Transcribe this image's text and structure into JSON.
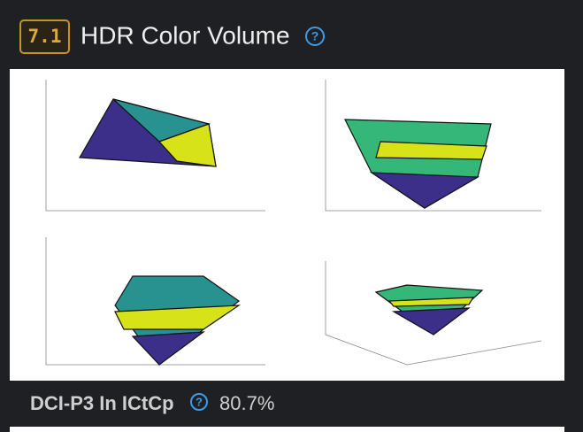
{
  "section": {
    "number": "7.1",
    "title": "HDR Color Volume",
    "help": "?"
  },
  "metric": {
    "label": "DCI-P3 In ICtCp",
    "help": "?",
    "value": "80.7%"
  }
}
